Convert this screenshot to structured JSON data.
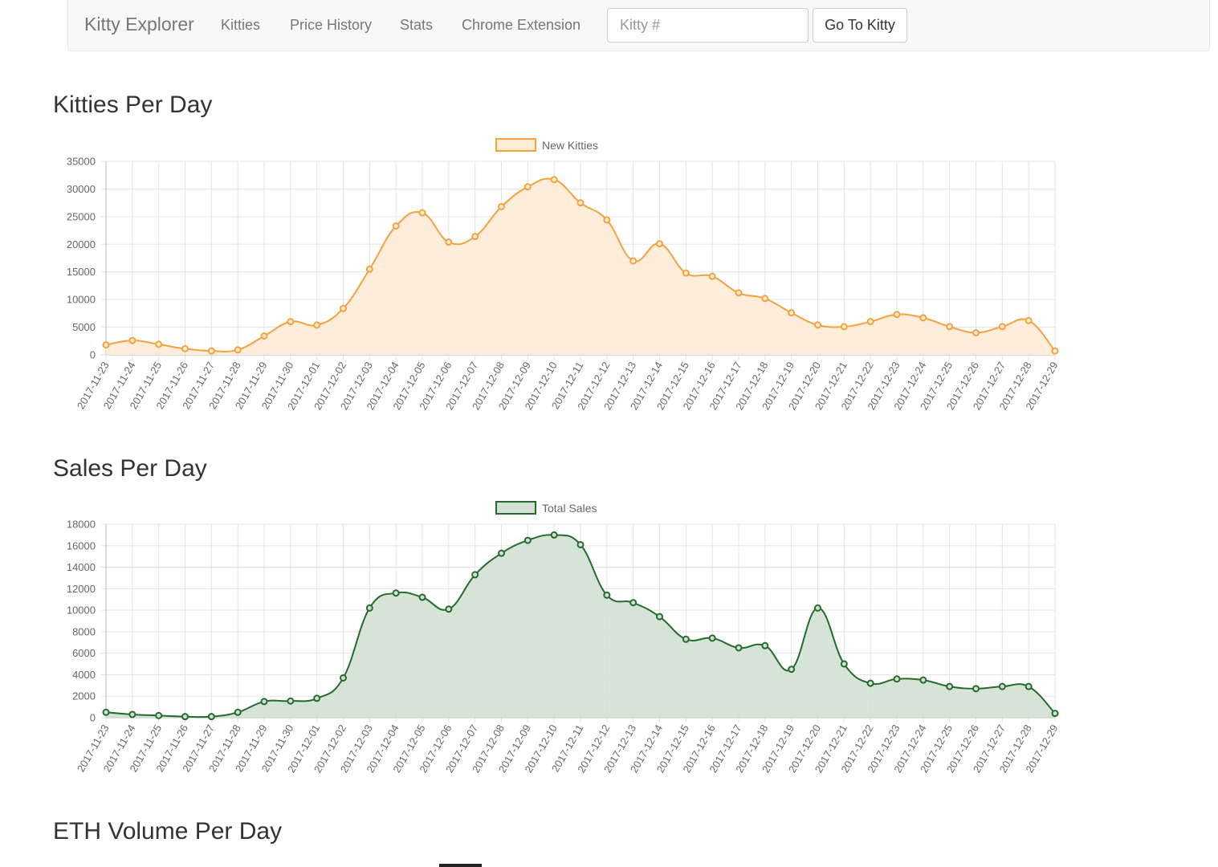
{
  "nav": {
    "brand": "Kitty Explorer",
    "links": [
      "Kitties",
      "Price History",
      "Stats",
      "Chrome Extension"
    ],
    "search_placeholder": "Kitty #",
    "go_label": "Go To Kitty"
  },
  "sections": [
    {
      "title": "Kitties Per Day"
    },
    {
      "title": "Sales Per Day"
    },
    {
      "title": "ETH Volume Per Day"
    }
  ],
  "chart_data": [
    {
      "type": "area",
      "categories": [
        "2017-11-23",
        "2017-11-24",
        "2017-11-25",
        "2017-11-26",
        "2017-11-27",
        "2017-11-28",
        "2017-11-29",
        "2017-11-30",
        "2017-12-01",
        "2017-12-02",
        "2017-12-03",
        "2017-12-04",
        "2017-12-05",
        "2017-12-06",
        "2017-12-07",
        "2017-12-08",
        "2017-12-09",
        "2017-12-10",
        "2017-12-11",
        "2017-12-12",
        "2017-12-13",
        "2017-12-14",
        "2017-12-15",
        "2017-12-16",
        "2017-12-17",
        "2017-12-18",
        "2017-12-19",
        "2017-12-20",
        "2017-12-21",
        "2017-12-22",
        "2017-12-23",
        "2017-12-24",
        "2017-12-25",
        "2017-12-26",
        "2017-12-27",
        "2017-12-28",
        "2017-12-29"
      ],
      "series": [
        {
          "name": "New Kitties",
          "values": [
            1800,
            2600,
            1900,
            1100,
            700,
            900,
            3400,
            6000,
            5400,
            8400,
            15500,
            23300,
            25700,
            20400,
            21400,
            26800,
            30400,
            31700,
            27500,
            24400,
            17000,
            20100,
            14800,
            14200,
            11200,
            10200,
            7600,
            5400,
            5100,
            6000,
            7300,
            6700,
            5100,
            4000,
            5100,
            6200,
            700
          ]
        }
      ],
      "ylim": [
        0,
        35000
      ],
      "yticks": [
        0,
        5000,
        10000,
        15000,
        20000,
        25000,
        30000,
        35000
      ],
      "grid": true,
      "legend": "top",
      "colors": {
        "line": "#f4a23d",
        "fill": "#fdebd6"
      }
    },
    {
      "type": "area",
      "categories": [
        "2017-11-23",
        "2017-11-24",
        "2017-11-25",
        "2017-11-26",
        "2017-11-27",
        "2017-11-28",
        "2017-11-29",
        "2017-11-30",
        "2017-12-01",
        "2017-12-02",
        "2017-12-03",
        "2017-12-04",
        "2017-12-05",
        "2017-12-06",
        "2017-12-07",
        "2017-12-08",
        "2017-12-09",
        "2017-12-10",
        "2017-12-11",
        "2017-12-12",
        "2017-12-13",
        "2017-12-14",
        "2017-12-15",
        "2017-12-16",
        "2017-12-17",
        "2017-12-18",
        "2017-12-19",
        "2017-12-20",
        "2017-12-21",
        "2017-12-22",
        "2017-12-23",
        "2017-12-24",
        "2017-12-25",
        "2017-12-26",
        "2017-12-27",
        "2017-12-28",
        "2017-12-29"
      ],
      "series": [
        {
          "name": "Total Sales",
          "values": [
            500,
            300,
            200,
            100,
            100,
            500,
            1500,
            1550,
            1800,
            3700,
            10200,
            11600,
            11200,
            10100,
            13300,
            15300,
            16500,
            17000,
            16100,
            11400,
            10700,
            9400,
            7300,
            7400,
            6500,
            6700,
            4500,
            10200,
            5000,
            3200,
            3600,
            3500,
            2900,
            2700,
            2900,
            2900,
            400
          ]
        }
      ],
      "ylim": [
        0,
        18000
      ],
      "yticks": [
        0,
        2000,
        4000,
        6000,
        8000,
        10000,
        12000,
        14000,
        16000,
        18000
      ],
      "grid": true,
      "legend": "top",
      "colors": {
        "line": "#246b2c",
        "fill": "#d2e1d3"
      }
    }
  ]
}
